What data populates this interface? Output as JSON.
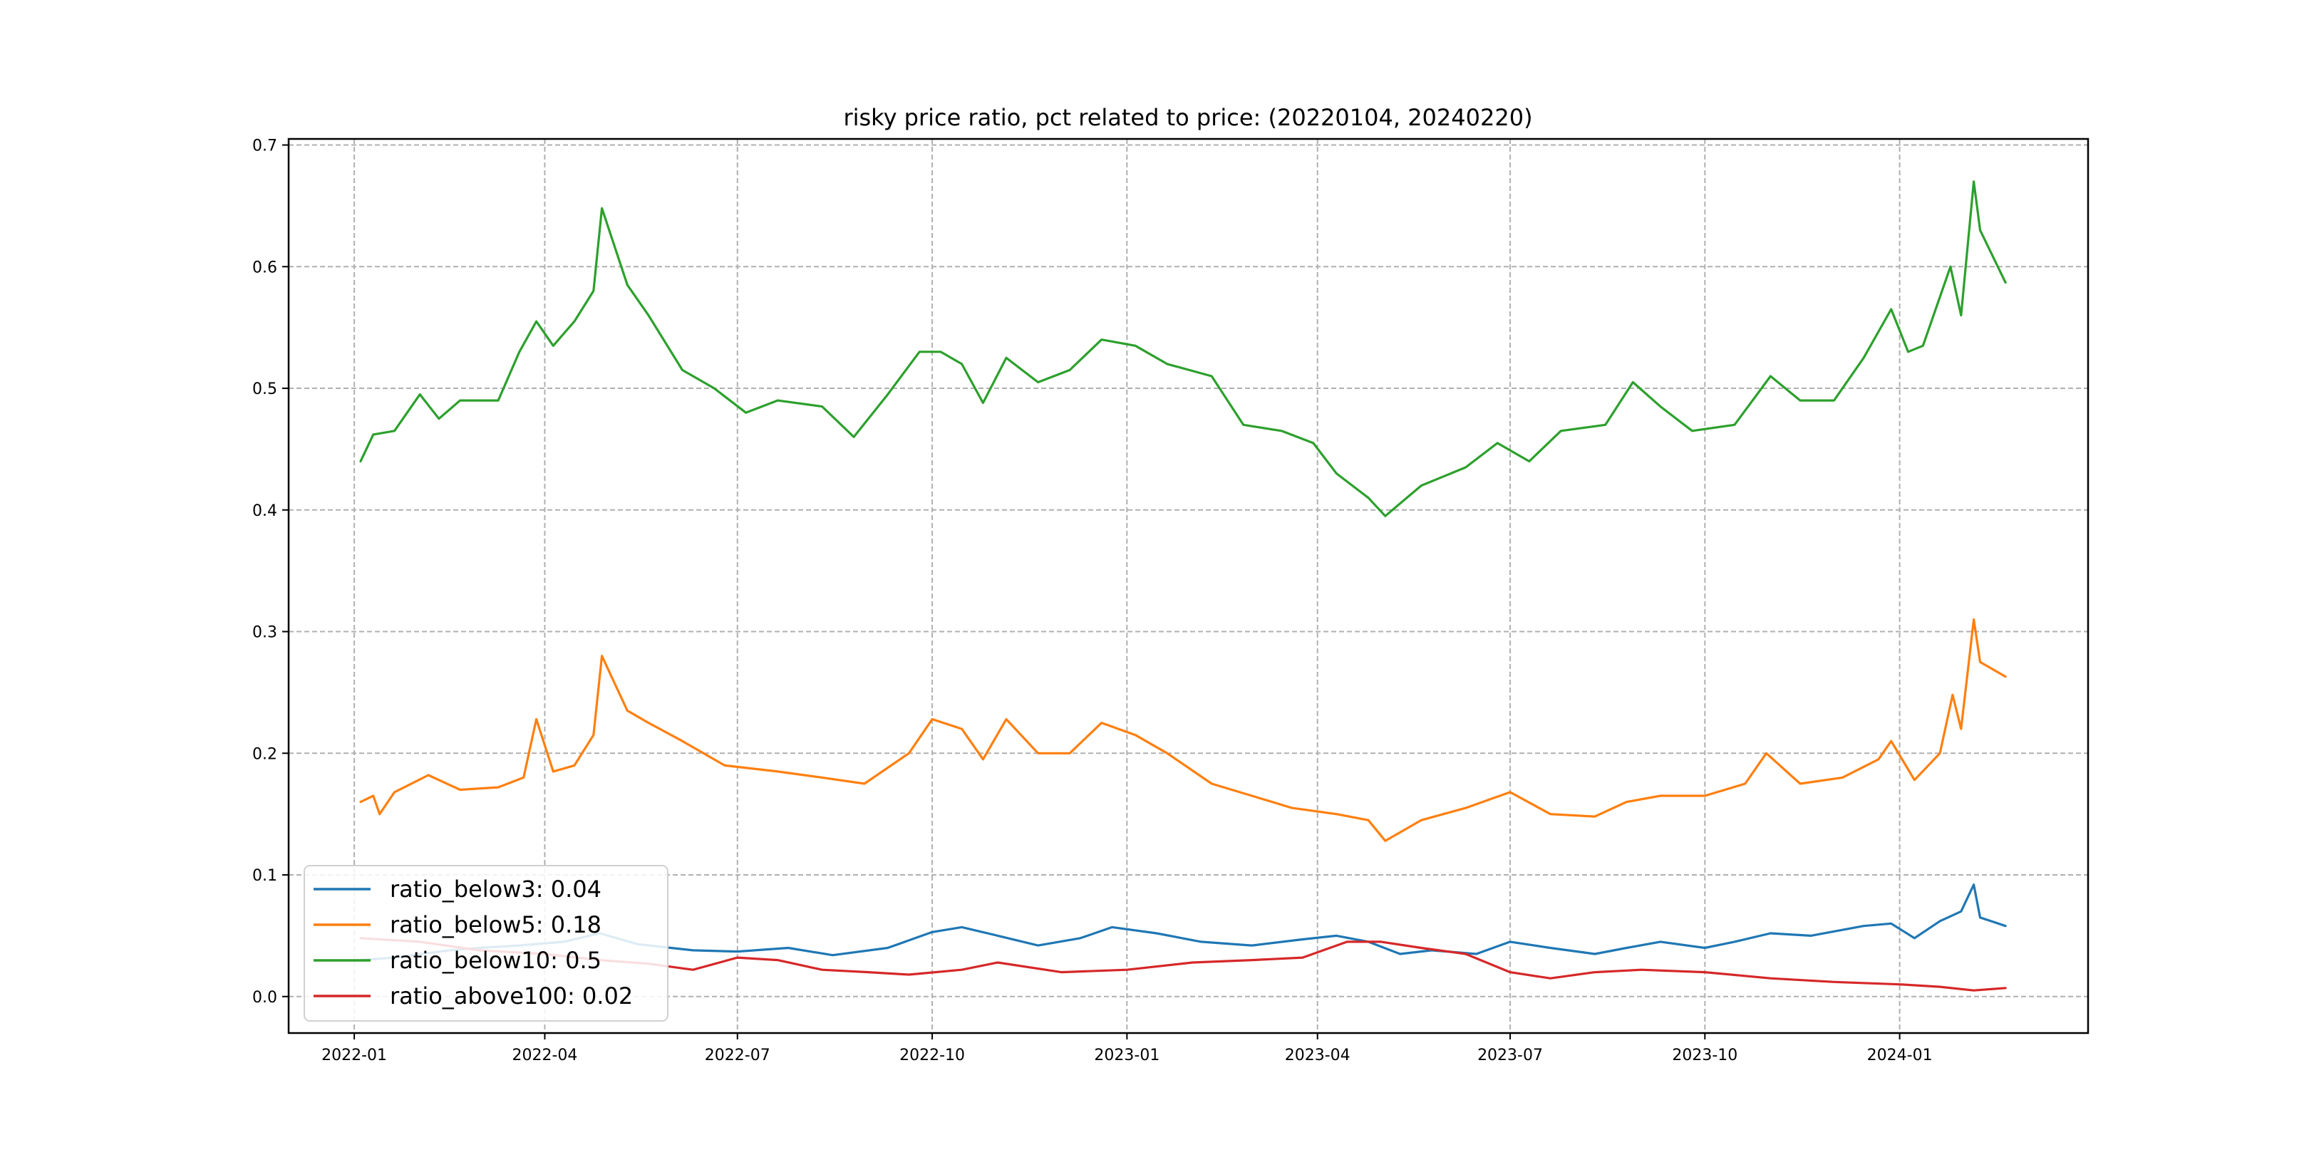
{
  "chart_data": {
    "type": "line",
    "title": "risky price ratio, pct related to price: (20220104, 20240220)",
    "xlabel": "",
    "ylabel": "",
    "x_axis": {
      "type": "date",
      "range": [
        "2021-12-01",
        "2024-03-30"
      ],
      "ticks": [
        {
          "date": "2022-01-01",
          "label": "2022-01"
        },
        {
          "date": "2022-04-01",
          "label": "2022-04"
        },
        {
          "date": "2022-07-01",
          "label": "2022-07"
        },
        {
          "date": "2022-10-01",
          "label": "2022-10"
        },
        {
          "date": "2023-01-01",
          "label": "2023-01"
        },
        {
          "date": "2023-04-01",
          "label": "2023-04"
        },
        {
          "date": "2023-07-01",
          "label": "2023-07"
        },
        {
          "date": "2023-10-01",
          "label": "2023-10"
        },
        {
          "date": "2024-01-01",
          "label": "2024-01"
        }
      ]
    },
    "y_axis": {
      "range": [
        -0.03,
        0.705
      ],
      "ticks": [
        {
          "value": 0.0,
          "label": "0.0"
        },
        {
          "value": 0.1,
          "label": "0.1"
        },
        {
          "value": 0.2,
          "label": "0.2"
        },
        {
          "value": 0.3,
          "label": "0.3"
        },
        {
          "value": 0.4,
          "label": "0.4"
        },
        {
          "value": 0.5,
          "label": "0.5"
        },
        {
          "value": 0.6,
          "label": "0.6"
        },
        {
          "value": 0.7,
          "label": "0.7"
        }
      ]
    },
    "grid": true,
    "legend": {
      "placement": "lower-left",
      "entries": [
        {
          "label": "ratio_below3: 0.04",
          "color": "#1f77b4"
        },
        {
          "label": "ratio_below5: 0.18",
          "color": "#ff7f0e"
        },
        {
          "label": "ratio_below10: 0.5",
          "color": "#2ca02c"
        },
        {
          "label": "ratio_above100: 0.02",
          "color": "#d62728"
        }
      ]
    },
    "series": [
      {
        "name": "ratio_below3: 0.04",
        "color": "#1f77b4",
        "points": [
          [
            "2022-01-04",
            0.03
          ],
          [
            "2022-01-20",
            0.032
          ],
          [
            "2022-02-15",
            0.038
          ],
          [
            "2022-03-01",
            0.04
          ],
          [
            "2022-03-20",
            0.042
          ],
          [
            "2022-04-10",
            0.045
          ],
          [
            "2022-04-27",
            0.052
          ],
          [
            "2022-05-15",
            0.043
          ],
          [
            "2022-06-10",
            0.038
          ],
          [
            "2022-07-01",
            0.037
          ],
          [
            "2022-07-25",
            0.04
          ],
          [
            "2022-08-15",
            0.034
          ],
          [
            "2022-09-10",
            0.04
          ],
          [
            "2022-10-01",
            0.053
          ],
          [
            "2022-10-15",
            0.057
          ],
          [
            "2022-11-01",
            0.05
          ],
          [
            "2022-11-20",
            0.042
          ],
          [
            "2022-12-10",
            0.048
          ],
          [
            "2022-12-25",
            0.057
          ],
          [
            "2023-01-15",
            0.052
          ],
          [
            "2023-02-05",
            0.045
          ],
          [
            "2023-03-01",
            0.042
          ],
          [
            "2023-03-25",
            0.047
          ],
          [
            "2023-04-10",
            0.05
          ],
          [
            "2023-04-25",
            0.045
          ],
          [
            "2023-05-10",
            0.035
          ],
          [
            "2023-05-25",
            0.038
          ],
          [
            "2023-06-15",
            0.035
          ],
          [
            "2023-07-01",
            0.045
          ],
          [
            "2023-07-20",
            0.04
          ],
          [
            "2023-08-10",
            0.035
          ],
          [
            "2023-08-25",
            0.04
          ],
          [
            "2023-09-10",
            0.045
          ],
          [
            "2023-10-01",
            0.04
          ],
          [
            "2023-10-15",
            0.045
          ],
          [
            "2023-11-01",
            0.052
          ],
          [
            "2023-11-20",
            0.05
          ],
          [
            "2023-12-15",
            0.058
          ],
          [
            "2023-12-28",
            0.06
          ],
          [
            "2024-01-08",
            0.048
          ],
          [
            "2024-01-20",
            0.062
          ],
          [
            "2024-01-30",
            0.07
          ],
          [
            "2024-02-05",
            0.092
          ],
          [
            "2024-02-08",
            0.065
          ],
          [
            "2024-02-20",
            0.058
          ]
        ]
      },
      {
        "name": "ratio_below5: 0.18",
        "color": "#ff7f0e",
        "points": [
          [
            "2022-01-04",
            0.16
          ],
          [
            "2022-01-10",
            0.165
          ],
          [
            "2022-01-13",
            0.15
          ],
          [
            "2022-01-20",
            0.168
          ],
          [
            "2022-02-05",
            0.182
          ],
          [
            "2022-02-20",
            0.17
          ],
          [
            "2022-03-10",
            0.172
          ],
          [
            "2022-03-22",
            0.18
          ],
          [
            "2022-03-28",
            0.228
          ],
          [
            "2022-04-05",
            0.185
          ],
          [
            "2022-04-15",
            0.19
          ],
          [
            "2022-04-24",
            0.215
          ],
          [
            "2022-04-28",
            0.28
          ],
          [
            "2022-05-10",
            0.235
          ],
          [
            "2022-05-20",
            0.225
          ],
          [
            "2022-06-05",
            0.21
          ],
          [
            "2022-06-25",
            0.19
          ],
          [
            "2022-07-20",
            0.185
          ],
          [
            "2022-08-10",
            0.18
          ],
          [
            "2022-08-30",
            0.175
          ],
          [
            "2022-09-20",
            0.2
          ],
          [
            "2022-10-01",
            0.228
          ],
          [
            "2022-10-15",
            0.22
          ],
          [
            "2022-10-25",
            0.195
          ],
          [
            "2022-11-05",
            0.228
          ],
          [
            "2022-11-20",
            0.2
          ],
          [
            "2022-12-05",
            0.2
          ],
          [
            "2022-12-20",
            0.225
          ],
          [
            "2023-01-05",
            0.215
          ],
          [
            "2023-01-20",
            0.2
          ],
          [
            "2023-02-10",
            0.175
          ],
          [
            "2023-03-01",
            0.165
          ],
          [
            "2023-03-20",
            0.155
          ],
          [
            "2023-04-10",
            0.15
          ],
          [
            "2023-04-25",
            0.145
          ],
          [
            "2023-05-03",
            0.128
          ],
          [
            "2023-05-20",
            0.145
          ],
          [
            "2023-06-10",
            0.155
          ],
          [
            "2023-07-01",
            0.168
          ],
          [
            "2023-07-20",
            0.15
          ],
          [
            "2023-08-10",
            0.148
          ],
          [
            "2023-08-25",
            0.16
          ],
          [
            "2023-09-10",
            0.165
          ],
          [
            "2023-10-01",
            0.165
          ],
          [
            "2023-10-20",
            0.175
          ],
          [
            "2023-10-30",
            0.2
          ],
          [
            "2023-11-15",
            0.175
          ],
          [
            "2023-12-05",
            0.18
          ],
          [
            "2023-12-22",
            0.195
          ],
          [
            "2023-12-28",
            0.21
          ],
          [
            "2024-01-08",
            0.178
          ],
          [
            "2024-01-20",
            0.2
          ],
          [
            "2024-01-26",
            0.248
          ],
          [
            "2024-01-30",
            0.22
          ],
          [
            "2024-02-05",
            0.31
          ],
          [
            "2024-02-08",
            0.275
          ],
          [
            "2024-02-20",
            0.263
          ]
        ]
      },
      {
        "name": "ratio_below10: 0.5",
        "color": "#2ca02c",
        "points": [
          [
            "2022-01-04",
            0.44
          ],
          [
            "2022-01-10",
            0.462
          ],
          [
            "2022-01-20",
            0.465
          ],
          [
            "2022-02-01",
            0.495
          ],
          [
            "2022-02-10",
            0.475
          ],
          [
            "2022-02-20",
            0.49
          ],
          [
            "2022-03-10",
            0.49
          ],
          [
            "2022-03-20",
            0.53
          ],
          [
            "2022-03-28",
            0.555
          ],
          [
            "2022-04-05",
            0.535
          ],
          [
            "2022-04-15",
            0.555
          ],
          [
            "2022-04-24",
            0.58
          ],
          [
            "2022-04-28",
            0.648
          ],
          [
            "2022-05-10",
            0.585
          ],
          [
            "2022-05-20",
            0.56
          ],
          [
            "2022-06-05",
            0.515
          ],
          [
            "2022-06-20",
            0.5
          ],
          [
            "2022-07-05",
            0.48
          ],
          [
            "2022-07-20",
            0.49
          ],
          [
            "2022-08-10",
            0.485
          ],
          [
            "2022-08-25",
            0.46
          ],
          [
            "2022-09-10",
            0.495
          ],
          [
            "2022-09-25",
            0.53
          ],
          [
            "2022-10-05",
            0.53
          ],
          [
            "2022-10-15",
            0.52
          ],
          [
            "2022-10-25",
            0.488
          ],
          [
            "2022-11-05",
            0.525
          ],
          [
            "2022-11-20",
            0.505
          ],
          [
            "2022-12-05",
            0.515
          ],
          [
            "2022-12-20",
            0.54
          ],
          [
            "2023-01-05",
            0.535
          ],
          [
            "2023-01-20",
            0.52
          ],
          [
            "2023-02-10",
            0.51
          ],
          [
            "2023-02-25",
            0.47
          ],
          [
            "2023-03-15",
            0.465
          ],
          [
            "2023-03-30",
            0.455
          ],
          [
            "2023-04-10",
            0.43
          ],
          [
            "2023-04-25",
            0.41
          ],
          [
            "2023-05-03",
            0.395
          ],
          [
            "2023-05-20",
            0.42
          ],
          [
            "2023-06-10",
            0.435
          ],
          [
            "2023-06-25",
            0.455
          ],
          [
            "2023-07-10",
            0.44
          ],
          [
            "2023-07-25",
            0.465
          ],
          [
            "2023-08-15",
            0.47
          ],
          [
            "2023-08-28",
            0.505
          ],
          [
            "2023-09-10",
            0.485
          ],
          [
            "2023-09-25",
            0.465
          ],
          [
            "2023-10-15",
            0.47
          ],
          [
            "2023-11-01",
            0.51
          ],
          [
            "2023-11-15",
            0.49
          ],
          [
            "2023-12-01",
            0.49
          ],
          [
            "2023-12-15",
            0.525
          ],
          [
            "2023-12-28",
            0.565
          ],
          [
            "2024-01-05",
            0.53
          ],
          [
            "2024-01-12",
            0.535
          ],
          [
            "2024-01-25",
            0.6
          ],
          [
            "2024-01-30",
            0.56
          ],
          [
            "2024-02-05",
            0.67
          ],
          [
            "2024-02-08",
            0.63
          ],
          [
            "2024-02-20",
            0.587
          ]
        ]
      },
      {
        "name": "ratio_above100: 0.02",
        "color": "#d62728",
        "points": [
          [
            "2022-01-04",
            0.048
          ],
          [
            "2022-02-01",
            0.045
          ],
          [
            "2022-03-01",
            0.038
          ],
          [
            "2022-04-01",
            0.035
          ],
          [
            "2022-04-27",
            0.03
          ],
          [
            "2022-05-20",
            0.027
          ],
          [
            "2022-06-10",
            0.022
          ],
          [
            "2022-07-01",
            0.032
          ],
          [
            "2022-07-20",
            0.03
          ],
          [
            "2022-08-10",
            0.022
          ],
          [
            "2022-09-01",
            0.02
          ],
          [
            "2022-09-20",
            0.018
          ],
          [
            "2022-10-15",
            0.022
          ],
          [
            "2022-11-01",
            0.028
          ],
          [
            "2022-12-01",
            0.02
          ],
          [
            "2023-01-01",
            0.022
          ],
          [
            "2023-02-01",
            0.028
          ],
          [
            "2023-03-01",
            0.03
          ],
          [
            "2023-03-25",
            0.032
          ],
          [
            "2023-04-15",
            0.045
          ],
          [
            "2023-05-01",
            0.045
          ],
          [
            "2023-05-20",
            0.04
          ],
          [
            "2023-06-10",
            0.035
          ],
          [
            "2023-07-01",
            0.02
          ],
          [
            "2023-07-20",
            0.015
          ],
          [
            "2023-08-10",
            0.02
          ],
          [
            "2023-09-01",
            0.022
          ],
          [
            "2023-10-01",
            0.02
          ],
          [
            "2023-11-01",
            0.015
          ],
          [
            "2023-12-01",
            0.012
          ],
          [
            "2024-01-01",
            0.01
          ],
          [
            "2024-01-20",
            0.008
          ],
          [
            "2024-02-05",
            0.005
          ],
          [
            "2024-02-20",
            0.007
          ]
        ]
      }
    ]
  }
}
